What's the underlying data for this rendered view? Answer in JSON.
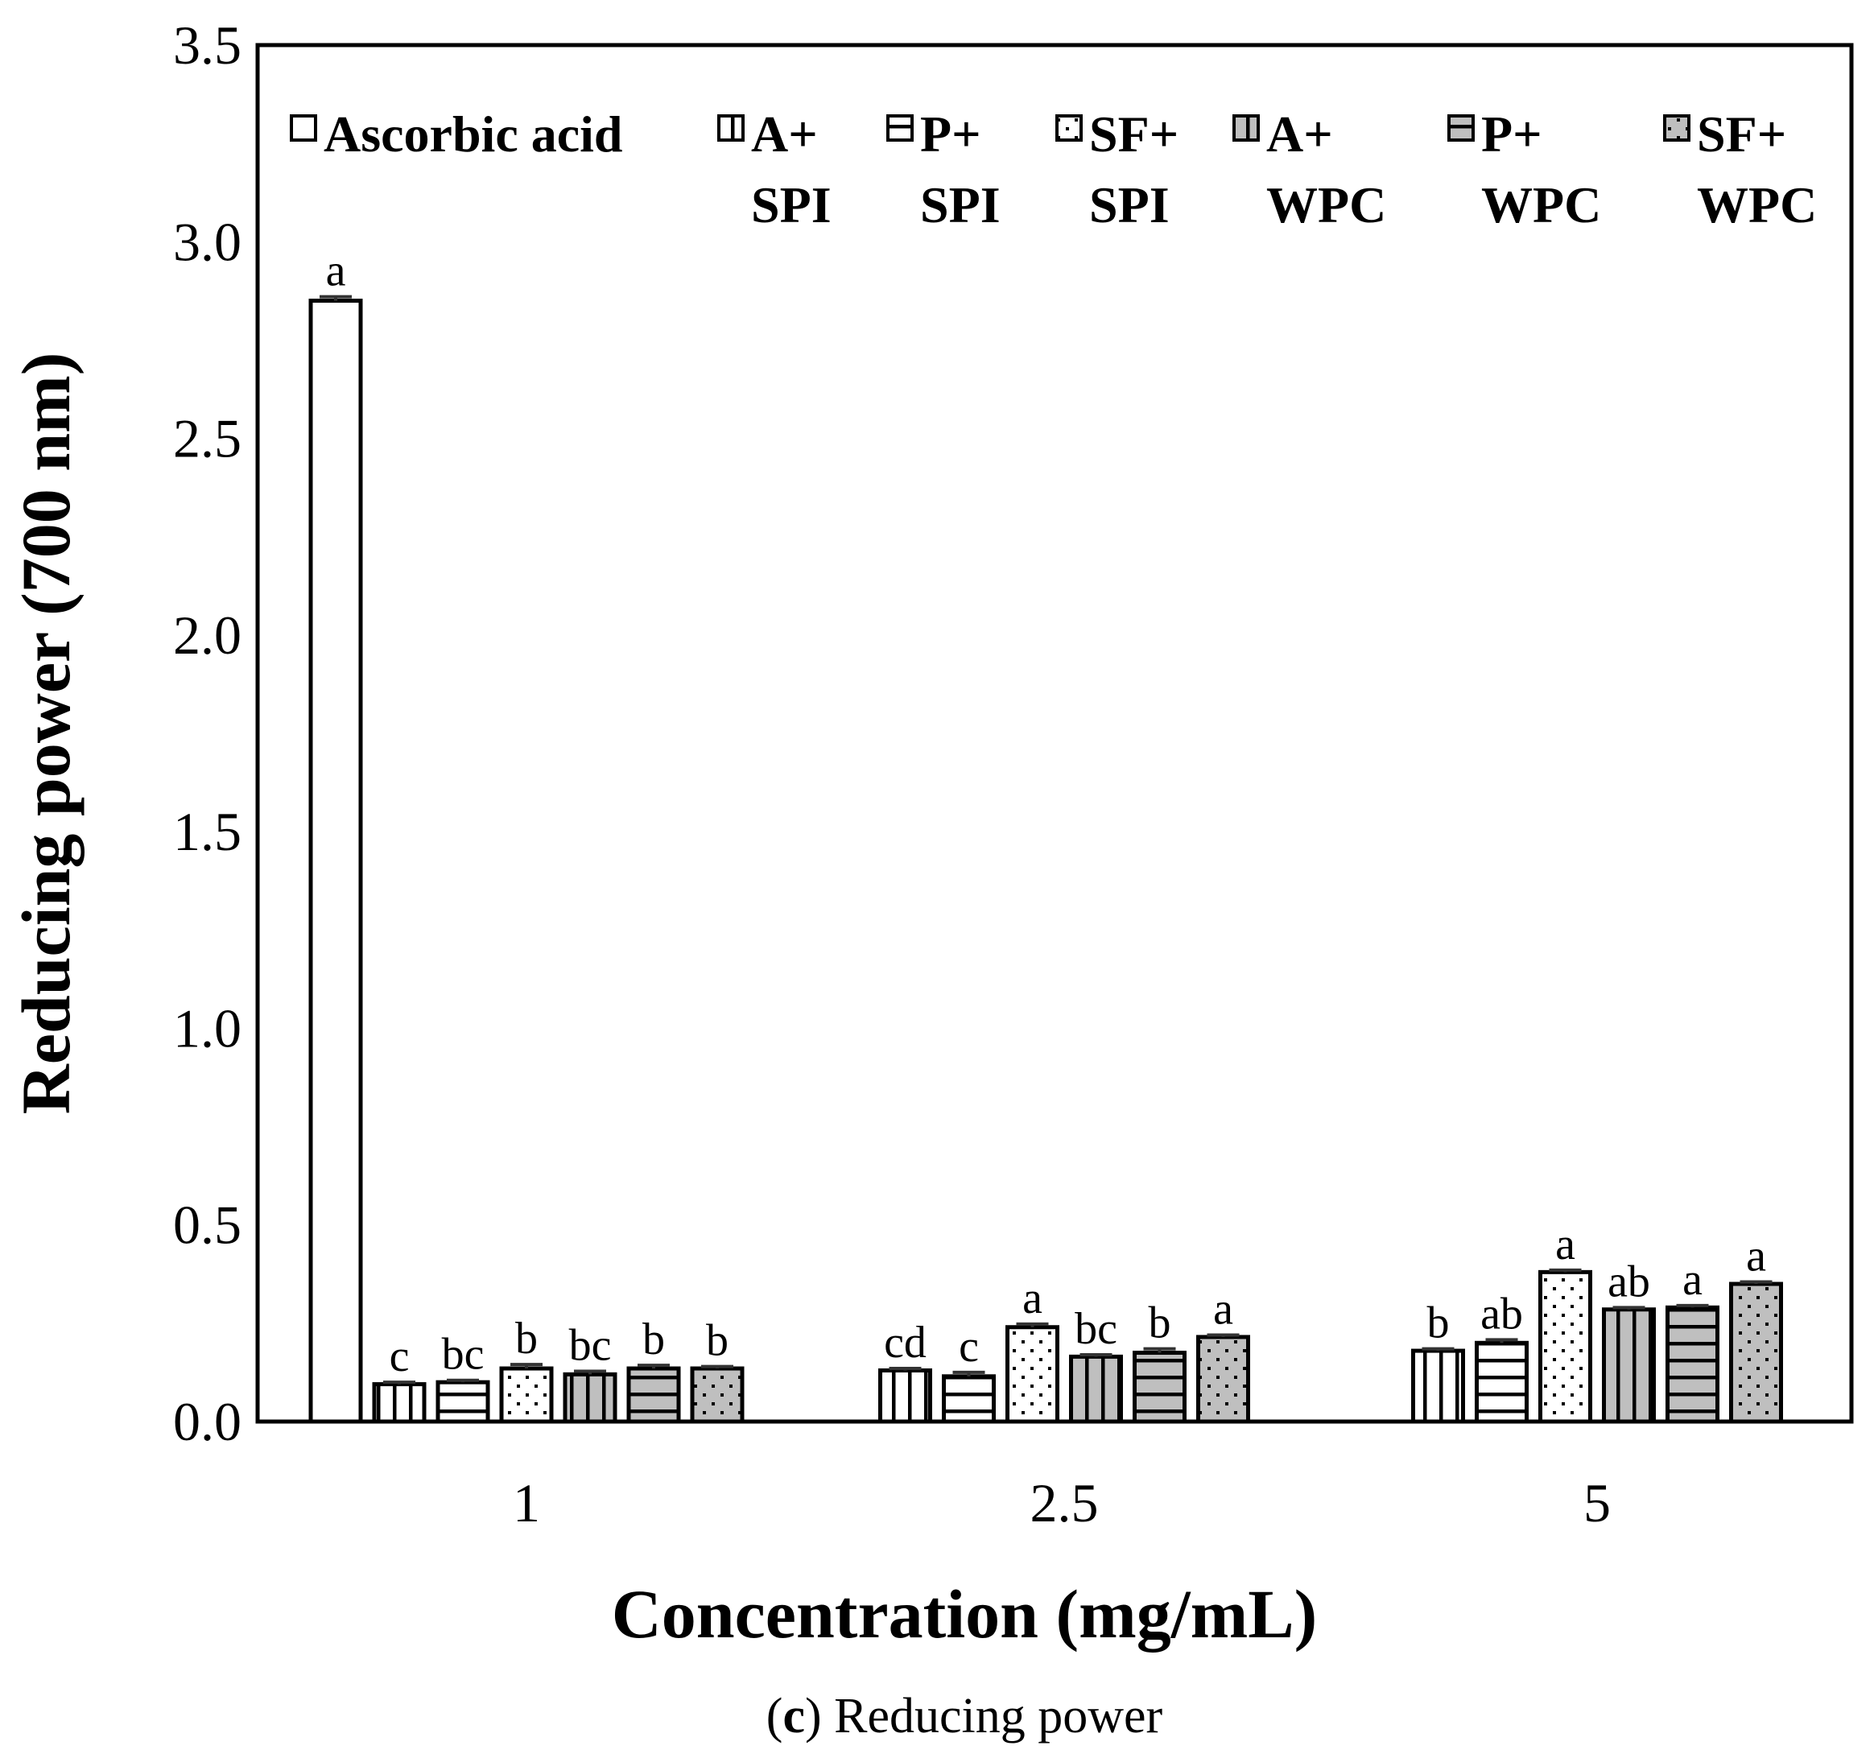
{
  "chart_data": {
    "type": "bar",
    "title": "",
    "xlabel": "Concentration (mg/mL)",
    "ylabel": "Reducing power (700 nm)",
    "ylim": [
      0,
      3.5
    ],
    "yticks": [
      "0.0",
      "0.5",
      "1.0",
      "1.5",
      "2.0",
      "2.5",
      "3.0",
      "3.5"
    ],
    "categories": [
      "1",
      "2.5",
      "5"
    ],
    "legend_position": "top",
    "series": [
      {
        "name": "Ascorbic acid",
        "legend_lines": [
          "Ascorbic acid"
        ],
        "pattern": "empty",
        "values": [
          2.85,
          null,
          null
        ],
        "errors": [
          0.01,
          null,
          null
        ],
        "letters": [
          "a",
          null,
          null
        ]
      },
      {
        "name": "A+ SPI",
        "legend_lines": [
          "A+",
          "SPI"
        ],
        "pattern": "vertical",
        "values": [
          0.095,
          0.13,
          0.18
        ],
        "errors": [
          0.005,
          0.005,
          0.005
        ],
        "letters": [
          "c",
          "cd",
          "b"
        ]
      },
      {
        "name": "P+ SPI",
        "legend_lines": [
          "P+",
          "SPI"
        ],
        "pattern": "horizontal",
        "values": [
          0.1,
          0.115,
          0.2
        ],
        "errors": [
          0.005,
          0.01,
          0.008
        ],
        "letters": [
          "bc",
          "c",
          "ab"
        ]
      },
      {
        "name": "SF+ SPI",
        "legend_lines": [
          "SF+",
          "SPI"
        ],
        "pattern": "dots",
        "values": [
          0.135,
          0.24,
          0.38
        ],
        "errors": [
          0.01,
          0.008,
          0.005
        ],
        "letters": [
          "b",
          "a",
          "a"
        ]
      },
      {
        "name": "A+ WPC",
        "legend_lines": [
          "A+",
          "WPC"
        ],
        "pattern": "vertical-gray",
        "values": [
          0.12,
          0.165,
          0.285
        ],
        "errors": [
          0.008,
          0.005,
          0.005
        ],
        "letters": [
          "bc",
          "bc",
          "ab"
        ]
      },
      {
        "name": "P+ WPC",
        "legend_lines": [
          "P+",
          "WPC"
        ],
        "pattern": "horizontal-gray",
        "values": [
          0.135,
          0.175,
          0.29
        ],
        "errors": [
          0.008,
          0.01,
          0.005
        ],
        "letters": [
          "b",
          "b",
          "a"
        ]
      },
      {
        "name": "SF+ WPC",
        "legend_lines": [
          "SF+",
          "WPC"
        ],
        "pattern": "dots-gray",
        "values": [
          0.135,
          0.215,
          0.35
        ],
        "errors": [
          0.005,
          0.005,
          0.005
        ],
        "letters": [
          "b",
          "a",
          "a"
        ]
      }
    ]
  },
  "caption": {
    "label": "c",
    "text": "Reducing power"
  }
}
